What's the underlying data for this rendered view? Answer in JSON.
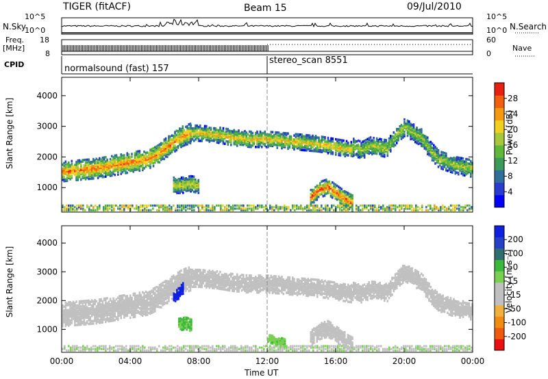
{
  "header": {
    "title": "TIGER (fitACF)",
    "beam": "Beam 15",
    "date": "09/Jul/2010"
  },
  "strip": {
    "nsky_label": "N.Sky",
    "nsky_ticks": [
      "10^5",
      "10^0"
    ],
    "nsearch_label": "N.Search",
    "nsearch_ticks": [
      "10^5",
      "10^0"
    ],
    "freq_label": "Freq.",
    "freq_unit": "[MHz]",
    "freq_ticks": [
      "18",
      "8"
    ],
    "nave_label": "Nave",
    "nave_ticks": [
      "60",
      "0"
    ],
    "cpid_label": "CPID",
    "cpid_segments": [
      {
        "name": "normalsound (fast) 157",
        "start_h": 0,
        "end_h": 12
      },
      {
        "name": "stereo_scan 8551",
        "start_h": 12,
        "end_h": 24
      }
    ]
  },
  "chart_data": [
    {
      "type": "heatmap",
      "title": "",
      "xlabel": "Time UT",
      "ylabel": "Slant Range [km]",
      "xlim": [
        0,
        24
      ],
      "ylim": [
        200,
        4600
      ],
      "x_tick_labels": [
        "00:00",
        "04:00",
        "08:00",
        "12:00",
        "16:00",
        "20:00",
        "00:00"
      ],
      "y_tick_labels": [
        "1000",
        "2000",
        "3000",
        "4000"
      ],
      "colorbar": {
        "label": "Power [dB]",
        "ticks": [
          "28",
          "24",
          "20",
          "16",
          "12",
          "8",
          "4"
        ],
        "range": [
          0,
          32
        ],
        "colors": [
          "#0000ff",
          "#2a3ccf",
          "#2f6f9a",
          "#3c9a5a",
          "#5fb83a",
          "#a6c83a",
          "#f0d020",
          "#f59a10",
          "#f06010",
          "#e82010"
        ]
      },
      "echo_bands": [
        {
          "t": [
            0,
            1,
            2,
            3,
            4,
            5,
            5.5,
            6,
            6.5,
            7,
            7.5
          ],
          "center_km": [
            1500,
            1550,
            1600,
            1700,
            1800,
            1900,
            2050,
            2250,
            2450,
            2650,
            2750
          ],
          "width_km": 320,
          "power_db": 26
        },
        {
          "t": [
            7.5,
            8,
            9,
            10,
            11,
            12,
            13,
            14,
            15,
            16,
            17
          ],
          "center_km": [
            2750,
            2750,
            2700,
            2600,
            2550,
            2550,
            2500,
            2450,
            2400,
            2300,
            2200
          ],
          "width_km": 250,
          "power_db": 22
        },
        {
          "t": [
            17,
            17.5,
            18,
            19,
            19.5,
            20,
            21,
            21.5,
            22,
            23,
            24
          ],
          "center_km": [
            2300,
            2200,
            2350,
            2250,
            2700,
            2950,
            2600,
            2200,
            1900,
            1700,
            1600
          ],
          "width_km": 280,
          "power_db": 18
        },
        {
          "t": [
            14.5,
            15,
            15.5,
            16,
            16.5,
            17
          ],
          "center_km": [
            650,
            900,
            1000,
            800,
            600,
            450
          ],
          "width_km": 250,
          "power_db": 28
        },
        {
          "t": [
            6.5,
            7,
            7.5,
            8
          ],
          "center_km": [
            1050,
            1050,
            1100,
            1050
          ],
          "width_km": 250,
          "power_db": 20
        }
      ]
    },
    {
      "type": "heatmap",
      "title": "",
      "xlabel": "Time UT",
      "ylabel": "Slant Range [km]",
      "xlim": [
        0,
        24
      ],
      "ylim": [
        200,
        4600
      ],
      "x_tick_labels": [
        "00:00",
        "04:00",
        "08:00",
        "12:00",
        "16:00",
        "20:00",
        "00:00"
      ],
      "y_tick_labels": [
        "1000",
        "2000",
        "3000",
        "4000"
      ],
      "colorbar": {
        "label": "Velocity [m s⁻¹]",
        "ticks": [
          "200",
          "100",
          "50",
          "15",
          "-15",
          "-50",
          "-100",
          "-200"
        ],
        "range": [
          -250,
          250
        ],
        "colors": [
          "#e81010",
          "#f05a10",
          "#f08c10",
          "#f0b040",
          "#c0c0c0",
          "#c0c0c0",
          "#7ad050",
          "#3cb83c",
          "#2f6f6f",
          "#2840c8",
          "#1020e0"
        ]
      },
      "echo_bands": [
        {
          "t": [
            0,
            1,
            2,
            3,
            4,
            5,
            5.5,
            6,
            6.5,
            7,
            7.5
          ],
          "center_km": [
            1500,
            1550,
            1600,
            1700,
            1800,
            1900,
            2050,
            2250,
            2450,
            2650,
            2750
          ],
          "width_km": 420,
          "velocity": 0
        },
        {
          "t": [
            7.5,
            8,
            9,
            10,
            11,
            12,
            13,
            14,
            15,
            16,
            17
          ],
          "center_km": [
            2750,
            2750,
            2700,
            2600,
            2550,
            2550,
            2500,
            2450,
            2400,
            2300,
            2200
          ],
          "width_km": 300,
          "velocity": 0
        },
        {
          "t": [
            17,
            17.5,
            18,
            19,
            19.5,
            20,
            21,
            21.5,
            22,
            23,
            24
          ],
          "center_km": [
            2300,
            2200,
            2350,
            2250,
            2700,
            2950,
            2600,
            2200,
            1900,
            1700,
            1600
          ],
          "width_km": 300,
          "velocity": -10
        },
        {
          "t": [
            14.5,
            15,
            15.5,
            16,
            16.5,
            17
          ],
          "center_km": [
            650,
            900,
            1000,
            800,
            600,
            450
          ],
          "width_km": 280,
          "velocity": 5
        },
        {
          "t": [
            6.5,
            6.8,
            7.1
          ],
          "center_km": [
            2050,
            2250,
            2450
          ],
          "width_km": 200,
          "velocity": 220
        },
        {
          "t": [
            6.8,
            7.2,
            7.6
          ],
          "center_km": [
            1150,
            1200,
            1100
          ],
          "width_km": 220,
          "velocity": 70
        },
        {
          "t": [
            12,
            12.5,
            13
          ],
          "center_km": [
            650,
            600,
            500
          ],
          "width_km": 150,
          "velocity": 60
        }
      ]
    }
  ]
}
